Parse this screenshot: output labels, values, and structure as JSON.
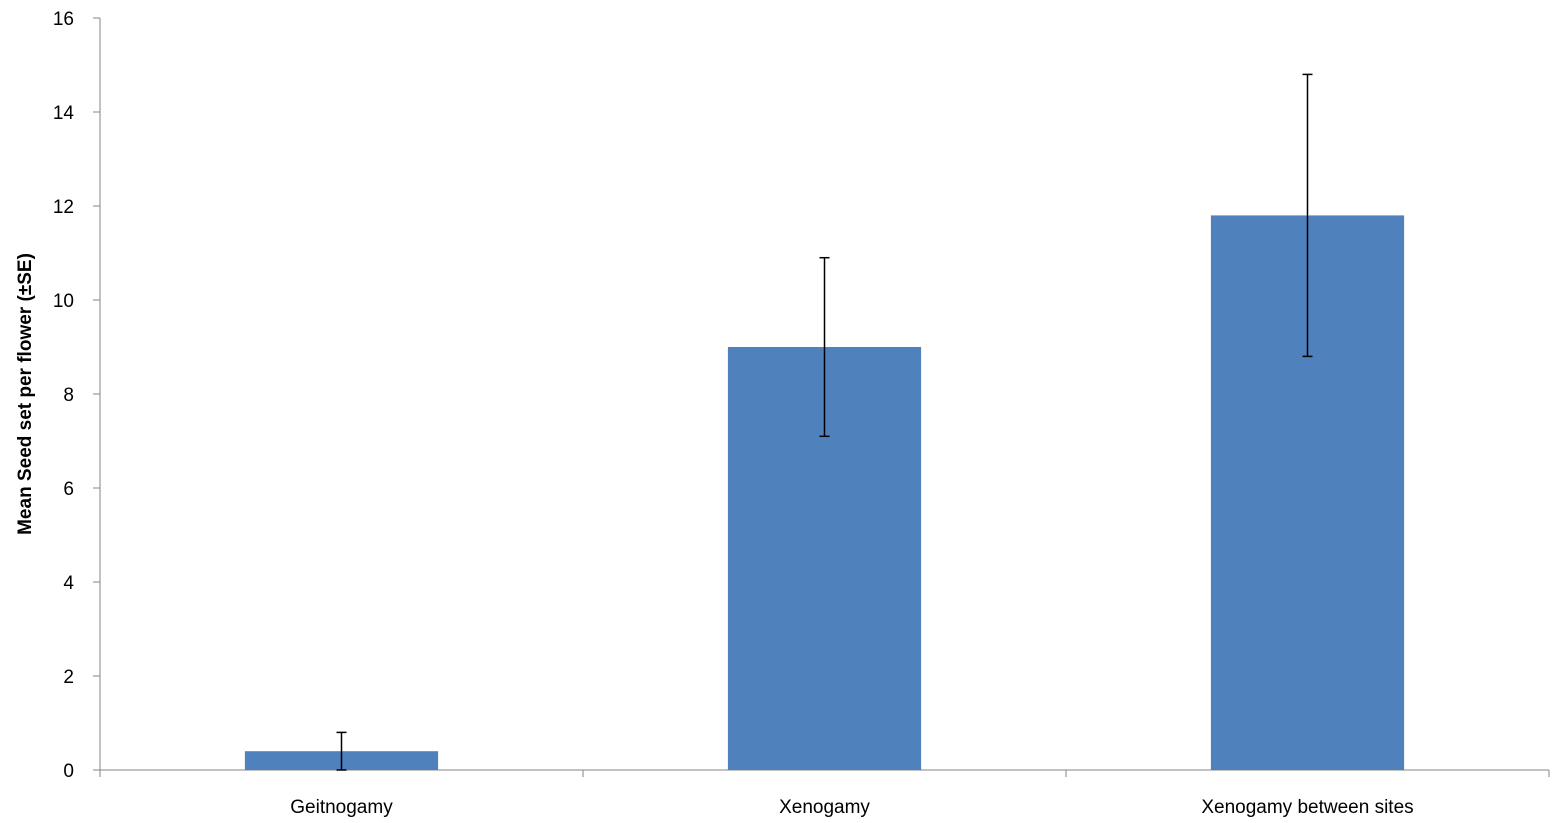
{
  "chart_data": {
    "type": "bar",
    "title": "",
    "xlabel": "",
    "ylabel": "Mean Seed set per flower (±SE)",
    "categories": [
      "Geitnogamy",
      "Xenogamy",
      "Xenogamy between sites"
    ],
    "values": [
      0.4,
      9.0,
      11.8
    ],
    "error_low": [
      0.0,
      7.1,
      8.8
    ],
    "error_high": [
      0.8,
      10.9,
      14.8
    ],
    "ylim": [
      0,
      16
    ],
    "yticks": [
      "0",
      "2",
      "4",
      "6",
      "8",
      "10",
      "12",
      "14",
      "16"
    ],
    "grid": false,
    "legend": "none",
    "bar_color": "#4f81bd"
  }
}
